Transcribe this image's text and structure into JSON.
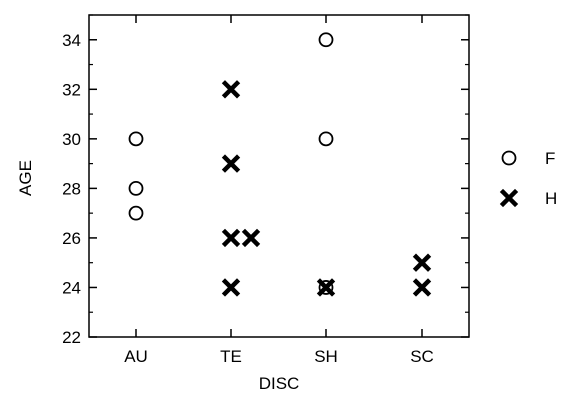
{
  "chart_data": {
    "type": "scatter",
    "title": "",
    "xlabel": "DISC",
    "ylabel": "AGE",
    "categories": [
      "AU",
      "TE",
      "SH",
      "SC"
    ],
    "ylim": [
      22,
      35
    ],
    "yticks": [
      22,
      24,
      26,
      28,
      30,
      32,
      34
    ],
    "grid": false,
    "legend_position": "right",
    "series": [
      {
        "name": "F",
        "marker": "open-circle",
        "points": [
          {
            "x": "AU",
            "y": 30
          },
          {
            "x": "AU",
            "y": 28
          },
          {
            "x": "AU",
            "y": 27
          },
          {
            "x": "SH",
            "y": 34
          },
          {
            "x": "SH",
            "y": 30
          },
          {
            "x": "SH",
            "y": 24
          }
        ]
      },
      {
        "name": "H",
        "marker": "bold-x",
        "points": [
          {
            "x": "TE",
            "y": 32
          },
          {
            "x": "TE",
            "y": 29
          },
          {
            "x": "TE",
            "y": 26
          },
          {
            "x": "TE",
            "y": 26,
            "jitter": "right"
          },
          {
            "x": "TE",
            "y": 24
          },
          {
            "x": "SH",
            "y": 24
          },
          {
            "x": "SC",
            "y": 25
          },
          {
            "x": "SC",
            "y": 24
          }
        ]
      }
    ],
    "colors": {
      "marker": "#000000",
      "axis": "#000000"
    }
  }
}
